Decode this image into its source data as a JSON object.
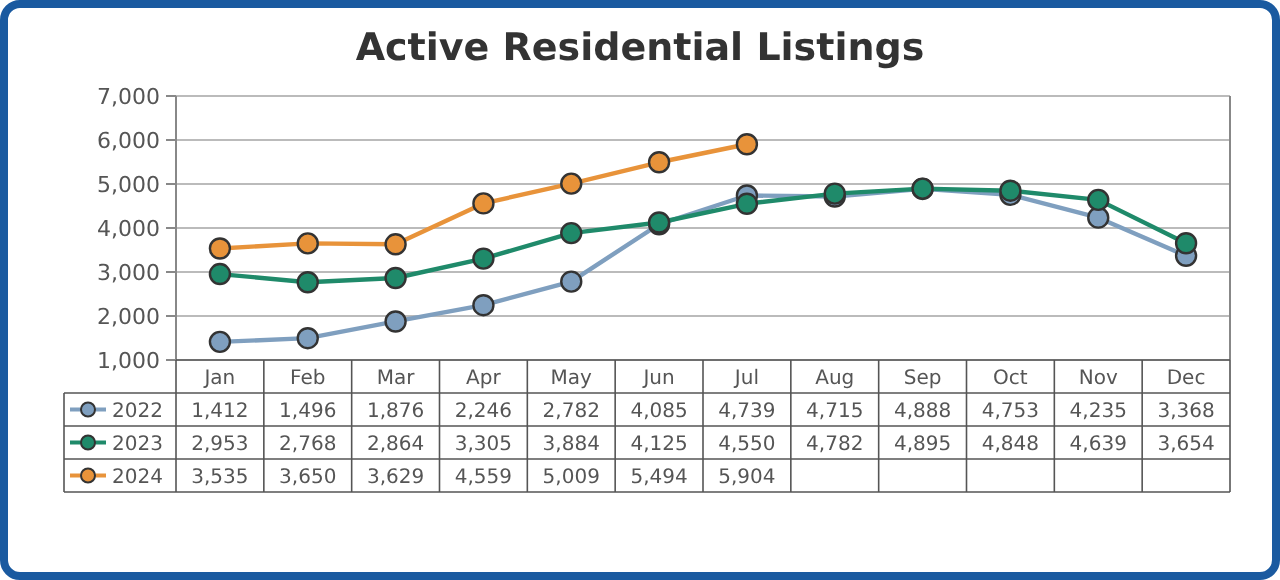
{
  "chart_data": {
    "type": "line",
    "title": "Active Residential Listings",
    "categories": [
      "Jan",
      "Feb",
      "Mar",
      "Apr",
      "May",
      "Jun",
      "Jul",
      "Aug",
      "Sep",
      "Oct",
      "Nov",
      "Dec"
    ],
    "series": [
      {
        "name": "2022",
        "color": "#7f9fbf",
        "values": [
          1412,
          1496,
          1876,
          2246,
          2782,
          4085,
          4739,
          4715,
          4888,
          4753,
          4235,
          3368
        ],
        "value_labels": [
          "1,412",
          "1,496",
          "1,876",
          "2,246",
          "2,782",
          "4,085",
          "4,739",
          "4,715",
          "4,888",
          "4,753",
          "4,235",
          "3,368"
        ]
      },
      {
        "name": "2023",
        "color": "#1f8a6a",
        "values": [
          2953,
          2768,
          2864,
          3305,
          3884,
          4125,
          4550,
          4782,
          4895,
          4848,
          4639,
          3654
        ],
        "value_labels": [
          "2,953",
          "2,768",
          "2,864",
          "3,305",
          "3,884",
          "4,125",
          "4,550",
          "4,782",
          "4,895",
          "4,848",
          "4,639",
          "3,654"
        ]
      },
      {
        "name": "2024",
        "color": "#e8933a",
        "values": [
          3535,
          3650,
          3629,
          4559,
          5009,
          5494,
          5904,
          null,
          null,
          null,
          null,
          null
        ],
        "value_labels": [
          "3,535",
          "3,650",
          "3,629",
          "4,559",
          "5,009",
          "5,494",
          "5,904",
          null,
          null,
          null,
          null,
          null
        ]
      }
    ],
    "ylim": [
      1000,
      7000
    ],
    "yticks": [
      {
        "value": 1000,
        "label": "1,000"
      },
      {
        "value": 2000,
        "label": "2,000"
      },
      {
        "value": 3000,
        "label": "3,000"
      },
      {
        "value": 4000,
        "label": "4,000"
      },
      {
        "value": 5000,
        "label": "5,000"
      },
      {
        "value": 6000,
        "label": "6,000"
      },
      {
        "value": 7000,
        "label": "7,000"
      }
    ],
    "grid": "y",
    "marker": "circle",
    "line_style": "solid",
    "legend": "bottom left"
  }
}
